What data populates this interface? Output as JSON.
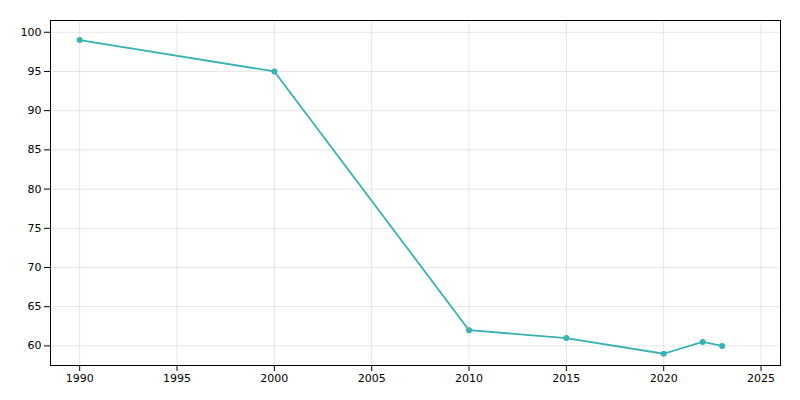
{
  "chart_data": {
    "type": "line",
    "x": [
      1990,
      2000,
      2010,
      2015,
      2020,
      2022,
      2023
    ],
    "values": [
      99,
      95,
      62,
      61,
      59,
      60.5,
      60
    ],
    "color": "#38b2b2",
    "marker": "circle",
    "xlim": [
      1988.5,
      2026
    ],
    "xticks": [
      1990,
      1995,
      2000,
      2005,
      2010,
      2015,
      2020,
      2025
    ],
    "ylim": [
      57.5,
      101.5
    ],
    "yticks": [
      60,
      65,
      70,
      75,
      80,
      85,
      90,
      95,
      100
    ],
    "grid": true
  }
}
